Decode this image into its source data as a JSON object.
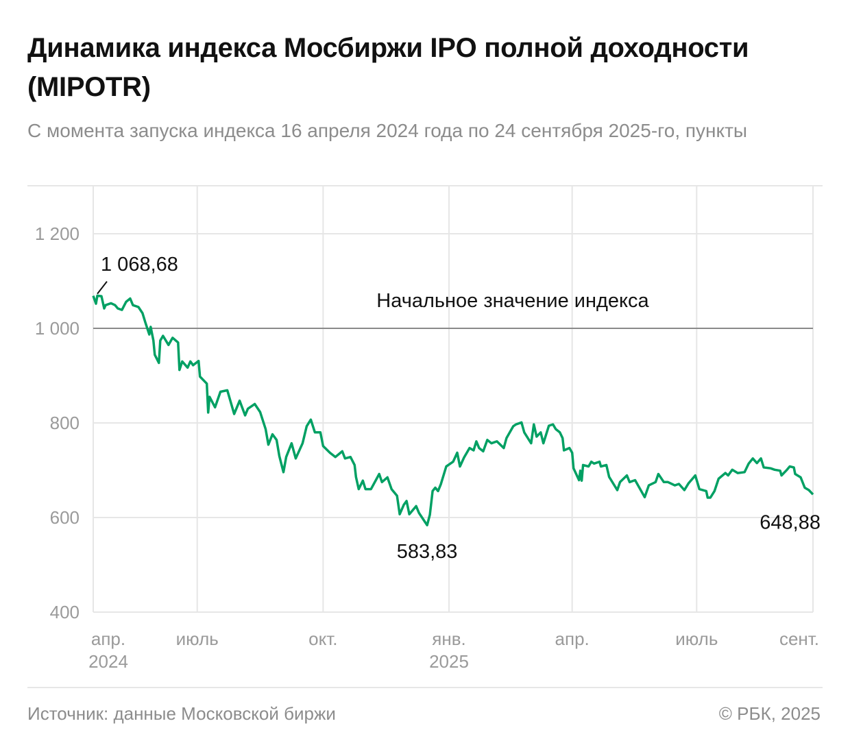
{
  "title": "Динамика индекса Мосбиржи IPO полной доходности (MIPOTR)",
  "subtitle": "С момента запуска индекса 16 апреля 2024 года по 24 сентября 2025-го, пункты",
  "footer": {
    "source": "Источник: данные Московской биржи",
    "copyright": "© РБК, 2025"
  },
  "chart_data": {
    "type": "line",
    "title": "Динамика индекса Мосбиржи IPO полной доходности (MIPOTR)",
    "ylabel": "",
    "xlabel": "",
    "ylim": [
      400,
      1300
    ],
    "xlim": [
      "2024-04-16",
      "2025-09-24"
    ],
    "grid": true,
    "line_color": "#00a063",
    "yticks": [
      {
        "value": 400,
        "label": "400"
      },
      {
        "value": 600,
        "label": "600"
      },
      {
        "value": 800,
        "label": "800"
      },
      {
        "value": 1000,
        "label": "1 000"
      },
      {
        "value": 1200,
        "label": "1 200"
      }
    ],
    "xticks": [
      {
        "date": "2024-04-16",
        "label": "апр.",
        "year": "2024"
      },
      {
        "date": "2024-07-01",
        "label": "июль",
        "year": ""
      },
      {
        "date": "2024-10-01",
        "label": "окт.",
        "year": ""
      },
      {
        "date": "2025-01-01",
        "label": "янв.",
        "year": "2025"
      },
      {
        "date": "2025-04-01",
        "label": "апр.",
        "year": ""
      },
      {
        "date": "2025-07-01",
        "label": "июль",
        "year": ""
      },
      {
        "date": "2025-09-24",
        "label": "сент.",
        "year": ""
      }
    ],
    "reference_line": {
      "value": 1000,
      "label": "Начальное значение индекса",
      "color": "#8a8a8a"
    },
    "annotations": [
      {
        "date": "2024-04-16",
        "value": 1068.68,
        "label": "1 068,68"
      },
      {
        "date": "2024-12-16",
        "value": 583.83,
        "label": "583,83"
      },
      {
        "date": "2025-09-24",
        "value": 648.88,
        "label": "648,88"
      }
    ],
    "points": [
      [
        "2024-04-16",
        1068.68
      ],
      [
        "2024-04-18",
        1052
      ],
      [
        "2024-04-19",
        1069
      ],
      [
        "2024-04-22",
        1068
      ],
      [
        "2024-04-24",
        1042
      ],
      [
        "2024-04-25",
        1049
      ],
      [
        "2024-04-29",
        1053
      ],
      [
        "2024-05-02",
        1049
      ],
      [
        "2024-05-04",
        1042
      ],
      [
        "2024-05-07",
        1039
      ],
      [
        "2024-05-10",
        1056
      ],
      [
        "2024-05-13",
        1063
      ],
      [
        "2024-05-15",
        1049
      ],
      [
        "2024-05-19",
        1045
      ],
      [
        "2024-05-22",
        1032
      ],
      [
        "2024-05-24",
        1013
      ],
      [
        "2024-05-27",
        987
      ],
      [
        "2024-05-28",
        1003
      ],
      [
        "2024-05-30",
        974
      ],
      [
        "2024-05-31",
        944
      ],
      [
        "2024-06-03",
        927
      ],
      [
        "2024-06-04",
        974
      ],
      [
        "2024-06-06",
        984
      ],
      [
        "2024-06-10",
        965
      ],
      [
        "2024-06-13",
        980
      ],
      [
        "2024-06-17",
        970
      ],
      [
        "2024-06-18",
        912
      ],
      [
        "2024-06-20",
        930
      ],
      [
        "2024-06-24",
        917
      ],
      [
        "2024-06-26",
        930
      ],
      [
        "2024-06-28",
        922
      ],
      [
        "2024-07-02",
        931
      ],
      [
        "2024-07-03",
        898
      ],
      [
        "2024-07-08",
        883
      ],
      [
        "2024-07-09",
        822
      ],
      [
        "2024-07-10",
        855
      ],
      [
        "2024-07-14",
        833
      ],
      [
        "2024-07-18",
        866
      ],
      [
        "2024-07-23",
        869
      ],
      [
        "2024-07-28",
        819
      ],
      [
        "2024-08-01",
        847
      ],
      [
        "2024-08-05",
        816
      ],
      [
        "2024-08-07",
        830
      ],
      [
        "2024-08-12",
        840
      ],
      [
        "2024-08-16",
        823
      ],
      [
        "2024-08-20",
        787
      ],
      [
        "2024-08-22",
        754
      ],
      [
        "2024-08-25",
        776
      ],
      [
        "2024-08-28",
        764
      ],
      [
        "2024-08-30",
        730
      ],
      [
        "2024-09-02",
        696
      ],
      [
        "2024-09-04",
        728
      ],
      [
        "2024-09-08",
        757
      ],
      [
        "2024-09-11",
        725
      ],
      [
        "2024-09-16",
        757
      ],
      [
        "2024-09-19",
        793
      ],
      [
        "2024-09-22",
        807
      ],
      [
        "2024-09-25",
        780
      ],
      [
        "2024-09-29",
        780
      ],
      [
        "2024-10-01",
        751
      ],
      [
        "2024-10-06",
        737
      ],
      [
        "2024-10-10",
        728
      ],
      [
        "2024-10-15",
        740
      ],
      [
        "2024-10-17",
        725
      ],
      [
        "2024-10-21",
        728
      ],
      [
        "2024-10-24",
        711
      ],
      [
        "2024-10-25",
        686
      ],
      [
        "2024-10-27",
        660
      ],
      [
        "2024-10-30",
        678
      ],
      [
        "2024-11-01",
        660
      ],
      [
        "2024-11-05",
        660
      ],
      [
        "2024-11-11",
        692
      ],
      [
        "2024-11-13",
        675
      ],
      [
        "2024-11-17",
        685
      ],
      [
        "2024-11-20",
        660
      ],
      [
        "2024-11-24",
        646
      ],
      [
        "2024-11-26",
        607
      ],
      [
        "2024-11-29",
        627
      ],
      [
        "2024-12-01",
        635
      ],
      [
        "2024-12-03",
        607
      ],
      [
        "2024-12-08",
        624
      ],
      [
        "2024-12-10",
        610
      ],
      [
        "2024-12-16",
        583.83
      ],
      [
        "2024-12-18",
        606
      ],
      [
        "2024-12-20",
        656
      ],
      [
        "2024-12-22",
        663
      ],
      [
        "2024-12-24",
        656
      ],
      [
        "2024-12-26",
        670
      ],
      [
        "2024-12-30",
        708
      ],
      [
        "2025-01-04",
        718
      ],
      [
        "2025-01-07",
        737
      ],
      [
        "2025-01-09",
        708
      ],
      [
        "2025-01-12",
        727
      ],
      [
        "2025-01-16",
        747
      ],
      [
        "2025-01-19",
        742
      ],
      [
        "2025-01-21",
        761
      ],
      [
        "2025-01-23",
        747
      ],
      [
        "2025-01-26",
        740
      ],
      [
        "2025-01-29",
        764
      ],
      [
        "2025-02-01",
        757
      ],
      [
        "2025-02-05",
        761
      ],
      [
        "2025-02-10",
        747
      ],
      [
        "2025-02-12",
        768
      ],
      [
        "2025-02-17",
        793
      ],
      [
        "2025-02-19",
        797
      ],
      [
        "2025-02-23",
        801
      ],
      [
        "2025-02-25",
        780
      ],
      [
        "2025-03-02",
        757
      ],
      [
        "2025-03-04",
        797
      ],
      [
        "2025-03-06",
        771
      ],
      [
        "2025-03-09",
        780
      ],
      [
        "2025-03-11",
        757
      ],
      [
        "2025-03-15",
        794
      ],
      [
        "2025-03-18",
        797
      ],
      [
        "2025-03-20",
        787
      ],
      [
        "2025-03-23",
        780
      ],
      [
        "2025-03-25",
        768
      ],
      [
        "2025-03-26",
        742
      ],
      [
        "2025-03-30",
        747
      ],
      [
        "2025-04-01",
        737
      ],
      [
        "2025-04-02",
        704
      ],
      [
        "2025-04-06",
        679
      ],
      [
        "2025-04-07",
        699
      ],
      [
        "2025-04-08",
        678
      ],
      [
        "2025-04-09",
        711
      ],
      [
        "2025-04-13",
        708
      ],
      [
        "2025-04-15",
        718
      ],
      [
        "2025-04-17",
        714
      ],
      [
        "2025-04-21",
        718
      ],
      [
        "2025-04-22",
        708
      ],
      [
        "2025-04-26",
        711
      ],
      [
        "2025-04-28",
        686
      ],
      [
        "2025-05-04",
        658
      ],
      [
        "2025-05-06",
        675
      ],
      [
        "2025-05-11",
        689
      ],
      [
        "2025-05-13",
        675
      ],
      [
        "2025-05-17",
        679
      ],
      [
        "2025-05-24",
        643
      ],
      [
        "2025-05-27",
        668
      ],
      [
        "2025-06-01",
        675
      ],
      [
        "2025-06-03",
        692
      ],
      [
        "2025-06-07",
        675
      ],
      [
        "2025-06-10",
        675
      ],
      [
        "2025-06-15",
        668
      ],
      [
        "2025-06-18",
        671
      ],
      [
        "2025-06-22",
        658
      ],
      [
        "2025-06-25",
        672
      ],
      [
        "2025-06-30",
        689
      ],
      [
        "2025-07-03",
        660
      ],
      [
        "2025-07-08",
        656
      ],
      [
        "2025-07-09",
        642
      ],
      [
        "2025-07-11",
        642
      ],
      [
        "2025-07-14",
        656
      ],
      [
        "2025-07-17",
        682
      ],
      [
        "2025-07-22",
        694
      ],
      [
        "2025-07-24",
        689
      ],
      [
        "2025-07-27",
        701
      ],
      [
        "2025-07-31",
        694
      ],
      [
        "2025-08-05",
        696
      ],
      [
        "2025-08-08",
        714
      ],
      [
        "2025-08-11",
        725
      ],
      [
        "2025-08-14",
        715
      ],
      [
        "2025-08-17",
        725
      ],
      [
        "2025-08-19",
        706
      ],
      [
        "2025-08-24",
        704
      ],
      [
        "2025-08-27",
        701
      ],
      [
        "2025-08-31",
        699
      ],
      [
        "2025-09-01",
        689
      ],
      [
        "2025-09-05",
        701
      ],
      [
        "2025-09-07",
        708
      ],
      [
        "2025-09-10",
        706
      ],
      [
        "2025-09-11",
        692
      ],
      [
        "2025-09-15",
        685
      ],
      [
        "2025-09-18",
        663
      ],
      [
        "2025-09-21",
        658
      ],
      [
        "2025-09-24",
        648.88
      ]
    ]
  }
}
